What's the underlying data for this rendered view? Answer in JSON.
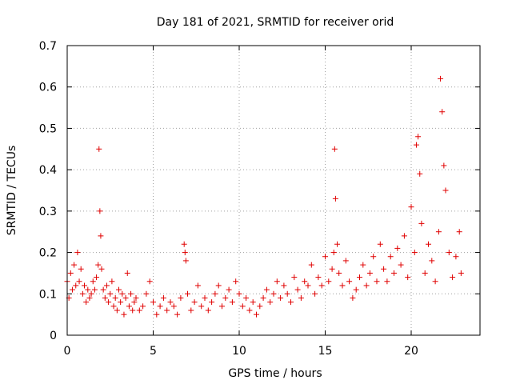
{
  "chart_data": {
    "type": "scatter",
    "title": "Day 181 of 2021, SRMTID for receiver orid",
    "xlabel": "GPS time / hours",
    "ylabel": "SRMTID / TECUs",
    "xlim": [
      0,
      24
    ],
    "ylim": [
      0,
      0.7
    ],
    "x_ticks": [
      0,
      5,
      10,
      15,
      20
    ],
    "x_tick_labels": [
      "0",
      "5",
      "10",
      "15",
      "20"
    ],
    "y_ticks": [
      0,
      0.1,
      0.2,
      0.3,
      0.4,
      0.5,
      0.6,
      0.7
    ],
    "y_tick_labels": [
      "0",
      "0.1",
      "0.2",
      "0.3",
      "0.4",
      "0.5",
      "0.6",
      "0.7"
    ],
    "grid": true,
    "marker": "plus",
    "series": [
      {
        "name": "SRMTID",
        "color": "#e00000",
        "x": [
          0.0,
          0.1,
          0.2,
          0.3,
          0.4,
          0.5,
          0.6,
          0.7,
          0.8,
          0.9,
          1.0,
          1.1,
          1.2,
          1.3,
          1.4,
          1.5,
          1.6,
          1.7,
          1.8,
          1.85,
          1.9,
          1.95,
          2.0,
          2.1,
          2.2,
          2.3,
          2.4,
          2.5,
          2.6,
          2.7,
          2.8,
          2.9,
          3.0,
          3.1,
          3.2,
          3.3,
          3.4,
          3.5,
          3.6,
          3.7,
          3.8,
          3.9,
          4.0,
          4.2,
          4.4,
          4.6,
          4.8,
          5.0,
          5.2,
          5.4,
          5.6,
          5.8,
          6.0,
          6.2,
          6.4,
          6.6,
          6.8,
          6.85,
          6.9,
          7.0,
          7.2,
          7.4,
          7.6,
          7.8,
          8.0,
          8.2,
          8.4,
          8.6,
          8.8,
          9.0,
          9.2,
          9.4,
          9.6,
          9.8,
          10.0,
          10.2,
          10.4,
          10.6,
          10.8,
          11.0,
          11.2,
          11.4,
          11.6,
          11.8,
          12.0,
          12.2,
          12.4,
          12.6,
          12.8,
          13.0,
          13.2,
          13.4,
          13.6,
          13.8,
          14.0,
          14.2,
          14.4,
          14.6,
          14.8,
          15.0,
          15.2,
          15.4,
          15.5,
          15.55,
          15.6,
          15.7,
          15.8,
          16.0,
          16.2,
          16.4,
          16.6,
          16.8,
          17.0,
          17.2,
          17.4,
          17.6,
          17.8,
          18.0,
          18.2,
          18.4,
          18.6,
          18.8,
          19.0,
          19.2,
          19.4,
          19.6,
          19.8,
          20.0,
          20.2,
          20.3,
          20.4,
          20.5,
          20.6,
          20.8,
          21.0,
          21.2,
          21.4,
          21.6,
          21.7,
          21.8,
          21.9,
          22.0,
          22.2,
          22.4,
          22.6,
          22.8,
          22.9
        ],
        "y": [
          0.13,
          0.09,
          0.15,
          0.11,
          0.17,
          0.12,
          0.2,
          0.13,
          0.16,
          0.1,
          0.12,
          0.08,
          0.11,
          0.09,
          0.1,
          0.13,
          0.11,
          0.14,
          0.17,
          0.45,
          0.3,
          0.24,
          0.16,
          0.11,
          0.09,
          0.12,
          0.08,
          0.1,
          0.13,
          0.07,
          0.09,
          0.06,
          0.11,
          0.08,
          0.1,
          0.05,
          0.09,
          0.15,
          0.07,
          0.1,
          0.06,
          0.08,
          0.09,
          0.06,
          0.07,
          0.1,
          0.13,
          0.08,
          0.05,
          0.07,
          0.09,
          0.06,
          0.08,
          0.07,
          0.05,
          0.09,
          0.22,
          0.2,
          0.18,
          0.1,
          0.06,
          0.08,
          0.12,
          0.07,
          0.09,
          0.06,
          0.08,
          0.1,
          0.12,
          0.07,
          0.09,
          0.11,
          0.08,
          0.13,
          0.1,
          0.07,
          0.09,
          0.06,
          0.08,
          0.05,
          0.07,
          0.09,
          0.11,
          0.08,
          0.1,
          0.13,
          0.09,
          0.12,
          0.1,
          0.08,
          0.14,
          0.11,
          0.09,
          0.13,
          0.12,
          0.17,
          0.1,
          0.14,
          0.12,
          0.19,
          0.13,
          0.16,
          0.2,
          0.45,
          0.33,
          0.22,
          0.15,
          0.12,
          0.18,
          0.13,
          0.09,
          0.11,
          0.14,
          0.17,
          0.12,
          0.15,
          0.19,
          0.13,
          0.22,
          0.16,
          0.13,
          0.19,
          0.15,
          0.21,
          0.17,
          0.24,
          0.14,
          0.31,
          0.2,
          0.46,
          0.48,
          0.39,
          0.27,
          0.15,
          0.22,
          0.18,
          0.13,
          0.25,
          0.62,
          0.54,
          0.41,
          0.35,
          0.2,
          0.14,
          0.19,
          0.25,
          0.15
        ],
        "scatter_note": "dense cloud of points between ~0.05 and ~0.2 with spikes near hours 1.8, 6.8, 15.6, 20.3 and 21.7"
      }
    ]
  }
}
